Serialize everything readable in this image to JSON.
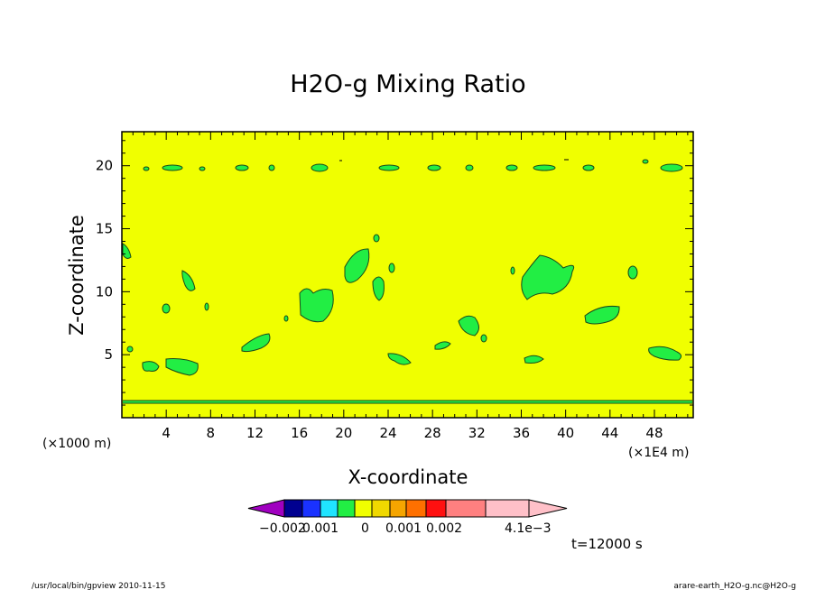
{
  "chart_data": {
    "type": "heatmap",
    "title": "H2O-g Mixing Ratio",
    "xlabel": "X-coordinate",
    "ylabel": "Z-coordinate",
    "x_unit_left": "(×1000 m)",
    "x_unit_right": "(×1E4 m)",
    "xlim": [
      0,
      51.5
    ],
    "ylim": [
      0,
      22.7
    ],
    "x_ticks": [
      4,
      8,
      12,
      16,
      20,
      24,
      28,
      32,
      36,
      40,
      44,
      48
    ],
    "y_ticks": [
      5,
      10,
      15,
      20
    ],
    "background_value_color": "#f0ff00",
    "contour_fill_color": "#22ee44",
    "colorbar": {
      "labels": [
        "−0.002",
        "0.001",
        "0",
        "0.001",
        "0.002",
        "4.1e−3"
      ],
      "colors": [
        "#a000c0",
        "#000090",
        "#1a32ff",
        "#20e4ff",
        "#22ee44",
        "#f0ff00",
        "#f0d800",
        "#f5a500",
        "#ff7000",
        "#ff1010",
        "#ff8080",
        "#ffc0c8"
      ]
    },
    "anomalies": [
      {
        "x": 1.0,
        "z": 20.0
      },
      {
        "x": 4.2,
        "z": 20.0
      },
      {
        "x": 7.3,
        "z": 20.0
      },
      {
        "x": 10.6,
        "z": 20.0
      },
      {
        "x": 13.2,
        "z": 20.0
      },
      {
        "x": 16.0,
        "z": 20.0
      },
      {
        "x": 18.0,
        "z": 20.0
      },
      {
        "x": 24.0,
        "z": 20.0
      },
      {
        "x": 27.8,
        "z": 20.0
      },
      {
        "x": 31.2,
        "z": 20.0
      },
      {
        "x": 35.0,
        "z": 20.0
      },
      {
        "x": 38.0,
        "z": 20.0
      },
      {
        "x": 42.0,
        "z": 20.0
      },
      {
        "x": 46.0,
        "z": 20.4
      },
      {
        "x": 49.0,
        "z": 20.0
      },
      {
        "x": 0.3,
        "z": 13.0
      },
      {
        "x": 5.8,
        "z": 11.0
      },
      {
        "x": 3.8,
        "z": 8.8
      },
      {
        "x": 7.6,
        "z": 9.0
      },
      {
        "x": 0.7,
        "z": 5.5
      },
      {
        "x": 2.6,
        "z": 4.2
      },
      {
        "x": 5.4,
        "z": 4.1
      },
      {
        "x": 12.0,
        "z": 5.8
      },
      {
        "x": 14.6,
        "z": 8.0
      },
      {
        "x": 17.4,
        "z": 9.0
      },
      {
        "x": 21.0,
        "z": 12.0
      },
      {
        "x": 22.6,
        "z": 14.5
      },
      {
        "x": 23.3,
        "z": 12.0
      },
      {
        "x": 22.8,
        "z": 10.5
      },
      {
        "x": 24.6,
        "z": 4.8
      },
      {
        "x": 28.8,
        "z": 6.0
      },
      {
        "x": 31.2,
        "z": 7.5
      },
      {
        "x": 32.6,
        "z": 6.4
      },
      {
        "x": 35.0,
        "z": 11.8
      },
      {
        "x": 38.0,
        "z": 11.5
      },
      {
        "x": 36.8,
        "z": 4.6
      },
      {
        "x": 42.3,
        "z": 8.8
      },
      {
        "x": 46.1,
        "z": 11.5
      },
      {
        "x": 48.6,
        "z": 5.3
      }
    ]
  },
  "time_label": "t=12000 s",
  "footer_left": "/usr/local/bin/gpview  2010-11-15",
  "footer_right": "arare-earth_H2O-g.nc@H2O-g"
}
